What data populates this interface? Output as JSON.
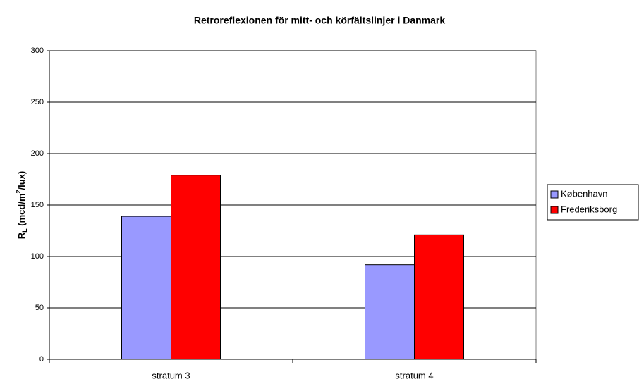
{
  "chart_data": {
    "type": "bar",
    "title": "Retroreflexionen för mitt- och körfältslinjer i Danmark",
    "y_label": [
      "R",
      "L",
      " (mcd/m",
      "2",
      "/lux)"
    ],
    "categories": [
      "stratum 3",
      "stratum 4"
    ],
    "series": [
      {
        "name": "København",
        "color": "#9999ff",
        "values": [
          139,
          92
        ]
      },
      {
        "name": "Frederiksborg",
        "color": "#ff0000",
        "values": [
          179,
          121
        ]
      }
    ],
    "ylim": [
      0,
      300
    ],
    "yticks": [
      0,
      50,
      100,
      150,
      200,
      250,
      300
    ],
    "grid": true,
    "legend": "right"
  }
}
